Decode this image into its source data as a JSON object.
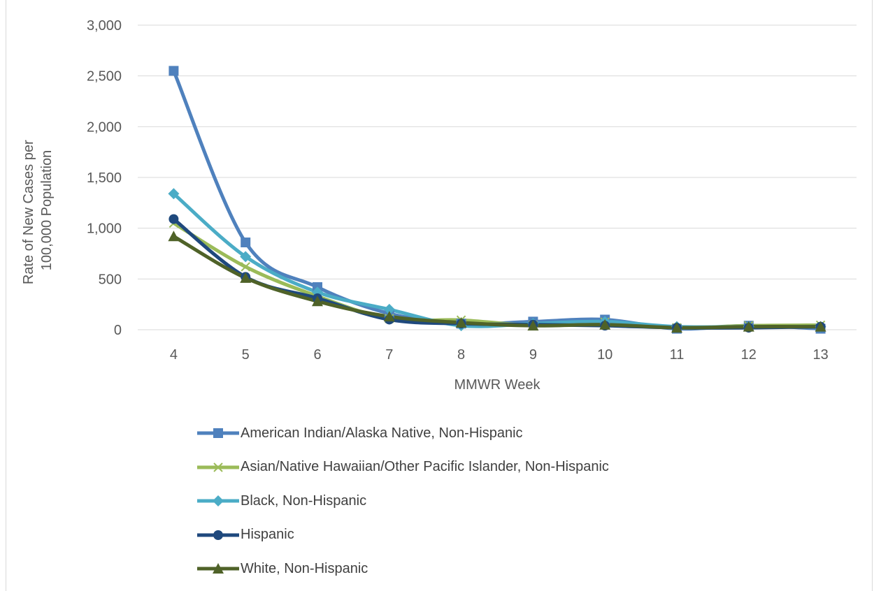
{
  "chart_data": {
    "type": "line",
    "title": "",
    "xlabel": "MMWR Week",
    "ylabel_lines": [
      "Rate of New Cases per",
      "100,000 Population"
    ],
    "x": [
      4,
      5,
      6,
      7,
      8,
      9,
      10,
      11,
      12,
      13
    ],
    "ylim": [
      0,
      3000
    ],
    "yticks": [
      0,
      500,
      1000,
      1500,
      2000,
      2500,
      3000
    ],
    "ytick_labels": [
      "0",
      "500",
      "1,000",
      "1,500",
      "2,000",
      "2,500",
      "3,000"
    ],
    "grid": "horizontal",
    "legend_position": "bottom",
    "series": [
      {
        "name": "American Indian/Alaska Native, Non-Hispanic",
        "color": "#4f81bd",
        "marker": "square",
        "values": [
          2550,
          860,
          420,
          160,
          60,
          80,
          100,
          10,
          40,
          10
        ]
      },
      {
        "name": "Asian/Native Hawaiian/Other Pacific Islander, Non-Hispanic",
        "color": "#9bbb59",
        "marker": "x",
        "values": [
          1050,
          620,
          330,
          110,
          95,
          45,
          75,
          20,
          40,
          45
        ]
      },
      {
        "name": "Black, Non-Hispanic",
        "color": "#4bacc6",
        "marker": "diamond",
        "values": [
          1340,
          720,
          370,
          200,
          40,
          60,
          80,
          30,
          30,
          30
        ]
      },
      {
        "name": "Hispanic",
        "color": "#1f497d",
        "marker": "circle",
        "values": [
          1090,
          520,
          310,
          100,
          60,
          50,
          40,
          20,
          20,
          30
        ]
      },
      {
        "name": "White, Non-Hispanic",
        "color": "#4f6228",
        "marker": "triangle",
        "values": [
          920,
          510,
          280,
          130,
          70,
          40,
          50,
          20,
          30,
          30
        ]
      }
    ]
  }
}
